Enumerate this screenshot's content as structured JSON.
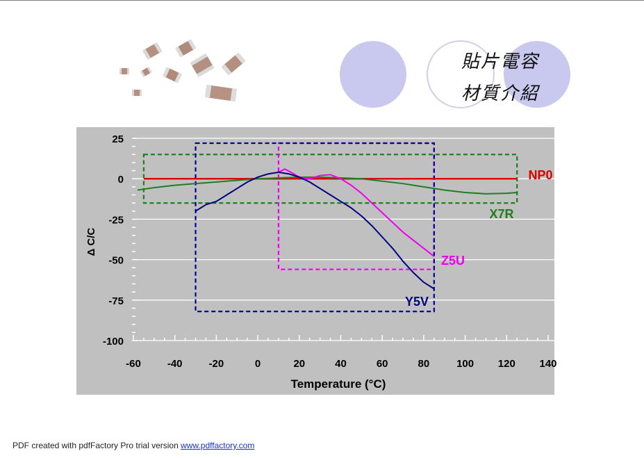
{
  "slide": {
    "title_line1": "貼片電容",
    "title_line2": "材質介紹",
    "colors": {
      "circle": "#c9c9ef",
      "circle_border": "#d0d0ea",
      "plot_bg": "#c0c0c0"
    }
  },
  "chart_data": {
    "type": "line",
    "title": "",
    "xlabel": "Temperature (°C)",
    "ylabel": "Δ C/C",
    "xlim": [
      -60,
      140
    ],
    "ylim": [
      -100,
      25
    ],
    "xticks": [
      "-60",
      "-40",
      "-20",
      "0",
      "20",
      "40",
      "60",
      "80",
      "100",
      "120",
      "140"
    ],
    "yticks": [
      "25",
      "0",
      "-25",
      "-50",
      "-75",
      "-100"
    ],
    "grid": true,
    "series": [
      {
        "name": "NP0",
        "color": "#dd0000",
        "x": [
          -55,
          125
        ],
        "y": [
          0,
          0
        ]
      },
      {
        "name": "X7R",
        "color": "#1f7f1f",
        "x": [
          -58,
          -50,
          -40,
          -30,
          -20,
          -10,
          0,
          10,
          20,
          30,
          40,
          50,
          60,
          70,
          80,
          90,
          100,
          110,
          120,
          125
        ],
        "y": [
          -7,
          -5.5,
          -4,
          -3,
          -2,
          -1,
          0,
          0.5,
          1,
          1,
          0.5,
          0,
          -1.5,
          -3,
          -5,
          -7,
          -8.5,
          -9.3,
          -9,
          -8.5
        ]
      },
      {
        "name": "Z5U",
        "color": "#ee00ee",
        "x": [
          10,
          13,
          16,
          20,
          25,
          30,
          35,
          40,
          45,
          50,
          55,
          60,
          65,
          70,
          75,
          80,
          85
        ],
        "y": [
          4,
          6,
          4,
          1,
          0,
          2,
          2.5,
          0,
          -4,
          -9,
          -15,
          -21,
          -27,
          -33,
          -38,
          -43,
          -48
        ]
      },
      {
        "name": "Y5V",
        "color": "#000080",
        "x": [
          -30,
          -25,
          -20,
          -15,
          -10,
          -5,
          0,
          5,
          10,
          15,
          20,
          25,
          30,
          35,
          40,
          45,
          50,
          55,
          60,
          65,
          70,
          75,
          80,
          85
        ],
        "y": [
          -20,
          -16,
          -14,
          -10,
          -6,
          -2,
          1,
          3,
          4,
          3,
          1,
          -2,
          -6,
          -10,
          -14,
          -18,
          -23,
          -29,
          -36,
          -43,
          -51,
          -58,
          -64,
          -68
        ]
      }
    ],
    "boxes": [
      {
        "label": "X7R",
        "color": "#1f7f1f",
        "x": [
          -55,
          125
        ],
        "y": [
          -15,
          15
        ]
      },
      {
        "label": "Z5U",
        "color": "#ee00ee",
        "x": [
          10,
          85
        ],
        "y": [
          -56,
          22
        ]
      },
      {
        "label": "Y5V",
        "color": "#000099",
        "x": [
          -30,
          85
        ],
        "y": [
          -82,
          22
        ]
      }
    ]
  },
  "footer": {
    "text": "PDF created with pdfFactory Pro trial version ",
    "link": "www.pdffactory.com"
  }
}
